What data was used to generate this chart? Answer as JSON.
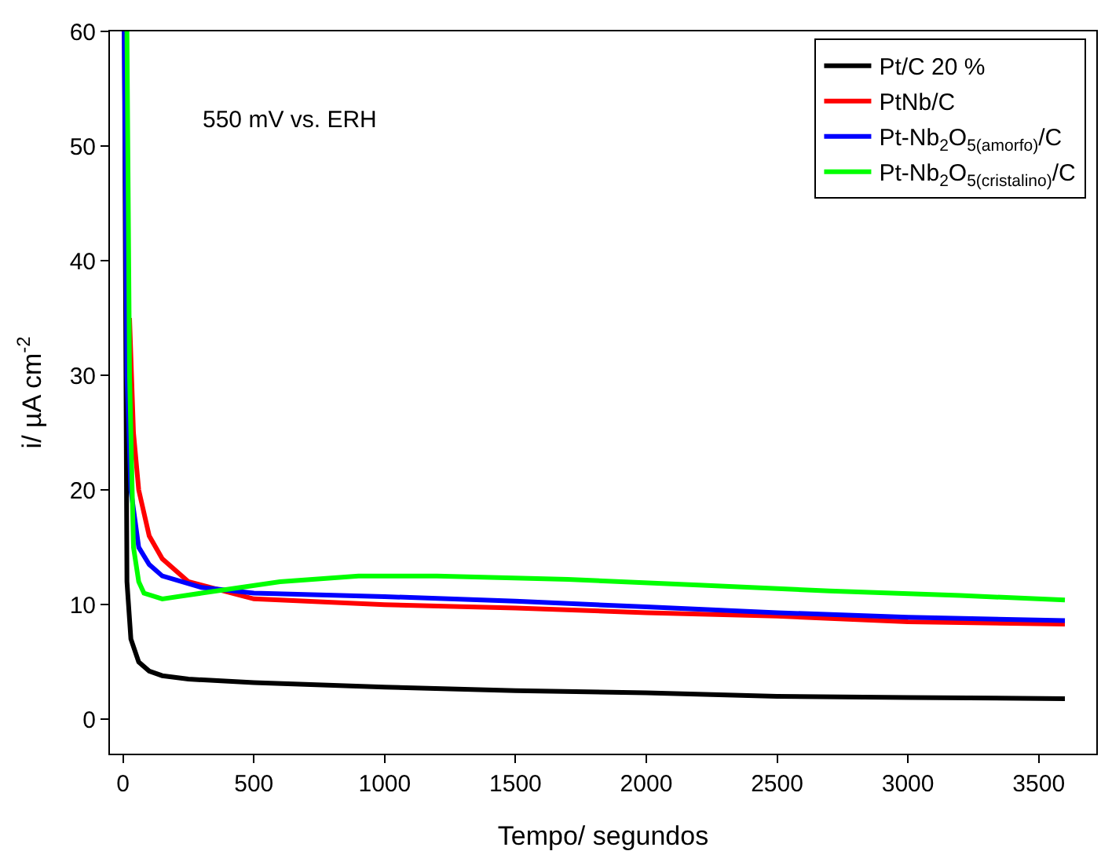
{
  "chart_data": {
    "type": "line",
    "xlabel": "Tempo/ segundos",
    "ylabel": "i/ µA cm$^{-2}$",
    "annotations": [
      "550 mV vs. ERH"
    ],
    "xlim": [
      -50,
      3720
    ],
    "ylim": [
      -3,
      60
    ],
    "xticks": [
      0,
      500,
      1000,
      1500,
      2000,
      2500,
      3000,
      3500
    ],
    "yticks": [
      0,
      10,
      20,
      30,
      40,
      50,
      60
    ],
    "grid": false,
    "legend": "top right",
    "marker": "none",
    "line_style": "solid",
    "series": [
      {
        "name": "Pt/C 20 %",
        "color": "#000000",
        "x": [
          5,
          15,
          30,
          60,
          100,
          150,
          250,
          500,
          1000,
          1500,
          2000,
          2500,
          3000,
          3600
        ],
        "values": [
          60,
          12,
          7,
          5,
          4.2,
          3.8,
          3.5,
          3.2,
          2.8,
          2.5,
          2.3,
          2,
          1.9,
          1.8
        ]
      },
      {
        "name": "PtNb/C",
        "color": "#ff0000",
        "x": [
          25,
          40,
          60,
          100,
          150,
          250,
          500,
          1000,
          1500,
          2000,
          2500,
          3000,
          3600
        ],
        "values": [
          35,
          25,
          20,
          16,
          14,
          12,
          10.5,
          10,
          9.7,
          9.3,
          9,
          8.5,
          8.3
        ]
      },
      {
        "name": "Pt-Nb$_{2}$O$_{5(amorfo)}$/C",
        "color": "#0000ff",
        "x": [
          5,
          15,
          30,
          60,
          100,
          150,
          300,
          500,
          1000,
          1500,
          2000,
          2500,
          3000,
          3600
        ],
        "values": [
          60,
          30,
          20,
          15,
          13.5,
          12.5,
          11.5,
          11,
          10.7,
          10.3,
          9.8,
          9.3,
          8.9,
          8.6
        ]
      },
      {
        "name": "Pt-Nb$_{2}$O$_{5(cristalino)}$/C",
        "color": "#00ff00",
        "x": [
          15,
          25,
          40,
          60,
          80,
          150,
          300,
          600,
          900,
          1200,
          1700,
          2200,
          2700,
          3200,
          3600
        ],
        "values": [
          60,
          30,
          15,
          12,
          11,
          10.5,
          11,
          12,
          12.5,
          12.5,
          12.2,
          11.7,
          11.2,
          10.8,
          10.4
        ]
      }
    ]
  }
}
